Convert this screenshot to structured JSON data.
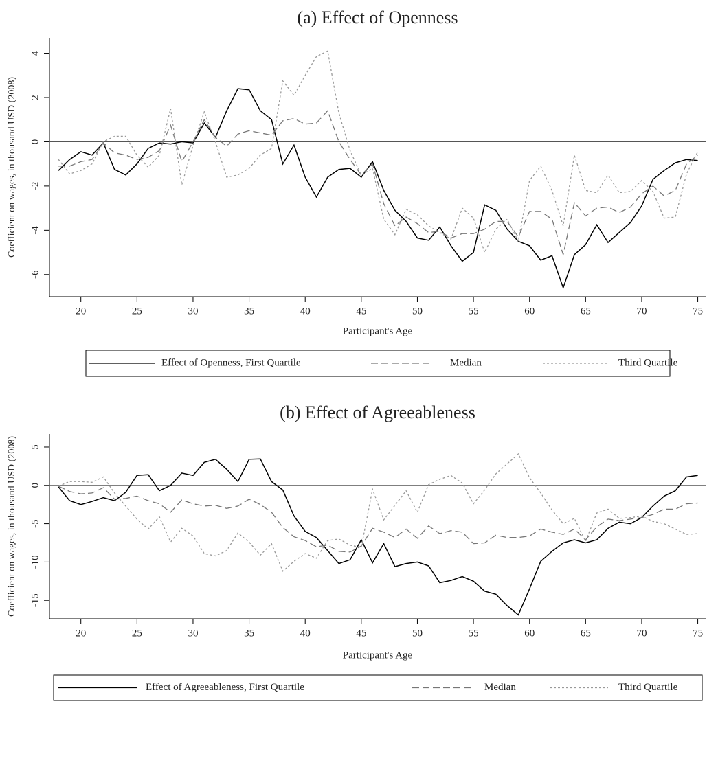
{
  "chart_data": [
    {
      "type": "line",
      "title": "(a) Effect of Openness",
      "xlabel": "Participant's Age",
      "ylabel": "Coefficient on wages, in thousand USD (2008)",
      "x": [
        18,
        19,
        20,
        21,
        22,
        23,
        24,
        25,
        26,
        27,
        28,
        29,
        30,
        31,
        32,
        33,
        34,
        35,
        36,
        37,
        38,
        39,
        40,
        41,
        42,
        43,
        44,
        45,
        46,
        47,
        48,
        49,
        50,
        51,
        52,
        53,
        54,
        55,
        56,
        57,
        58,
        59,
        60,
        61,
        62,
        63,
        64,
        65,
        66,
        67,
        68,
        69,
        70,
        71,
        72,
        73,
        74,
        75
      ],
      "series": [
        {
          "name": "Effect of Openness, First Quartile",
          "color": "#000000",
          "linestyle": "solid",
          "values": [
            -1.3,
            -0.8,
            -0.45,
            -0.6,
            -0.05,
            -1.25,
            -1.5,
            -1.0,
            -0.3,
            -0.05,
            -0.1,
            0.0,
            -0.05,
            0.85,
            0.2,
            1.4,
            2.4,
            2.35,
            1.4,
            1.0,
            -1.0,
            -0.15,
            -1.6,
            -2.5,
            -1.6,
            -1.25,
            -1.2,
            -1.6,
            -0.9,
            -2.2,
            -3.1,
            -3.6,
            -4.35,
            -4.45,
            -3.85,
            -4.7,
            -5.4,
            -5.0,
            -2.85,
            -3.1,
            -3.95,
            -4.5,
            -4.7,
            -5.35,
            -5.15,
            -6.6,
            -5.1,
            -4.65,
            -3.75,
            -4.55,
            -4.1,
            -3.65,
            -2.9,
            -1.7,
            -1.3,
            -0.95,
            -0.8,
            -0.85
          ]
        },
        {
          "name": "Median",
          "color": "#777777",
          "linestyle": "dashed",
          "values": [
            -1.1,
            -1.1,
            -0.9,
            -0.8,
            -0.05,
            -0.5,
            -0.6,
            -0.8,
            -0.7,
            -0.4,
            0.75,
            -0.9,
            0.0,
            1.0,
            0.2,
            -0.2,
            0.35,
            0.5,
            0.4,
            0.3,
            0.95,
            1.05,
            0.8,
            0.85,
            1.4,
            0.0,
            -0.8,
            -1.5,
            -1.0,
            -2.8,
            -3.8,
            -3.4,
            -3.7,
            -4.1,
            -4.05,
            -4.35,
            -4.15,
            -4.15,
            -3.95,
            -3.6,
            -3.6,
            -4.3,
            -3.15,
            -3.15,
            -3.5,
            -5.1,
            -2.75,
            -3.35,
            -3.0,
            -2.95,
            -3.2,
            -2.95,
            -2.35,
            -2.0,
            -2.45,
            -2.2,
            -1.0,
            -0.6
          ]
        },
        {
          "name": "Third Quartile",
          "color": "#999999",
          "linestyle": "dotted",
          "values": [
            -0.8,
            -1.45,
            -1.3,
            -1.0,
            0.0,
            0.25,
            0.25,
            -0.6,
            -1.15,
            -0.6,
            1.5,
            -1.95,
            -0.15,
            1.35,
            0.0,
            -1.6,
            -1.5,
            -1.2,
            -0.6,
            -0.3,
            2.75,
            2.1,
            3.0,
            3.85,
            4.1,
            1.3,
            -0.4,
            -1.5,
            -1.2,
            -3.5,
            -4.2,
            -3.05,
            -3.3,
            -3.8,
            -4.1,
            -4.4,
            -3.0,
            -3.45,
            -5.0,
            -3.95,
            -3.5,
            -4.5,
            -1.75,
            -1.1,
            -2.2,
            -3.8,
            -0.6,
            -2.2,
            -2.3,
            -1.5,
            -2.3,
            -2.25,
            -1.75,
            -2.25,
            -3.45,
            -3.4,
            -1.45,
            -0.45
          ]
        }
      ],
      "xlim": [
        17.2,
        75.7
      ],
      "ylim": [
        -7.0,
        4.7
      ],
      "xticks": [
        20,
        25,
        30,
        35,
        40,
        45,
        50,
        55,
        60,
        65,
        70,
        75
      ],
      "yticks": [
        -6,
        -4,
        -2,
        0,
        2,
        4
      ],
      "hline": 0
    },
    {
      "type": "line",
      "title": "(b) Effect of Agreeableness",
      "xlabel": "Participant's Age",
      "ylabel": "Coefficient on wages, in thousand USD (2008)",
      "x": [
        18,
        19,
        20,
        21,
        22,
        23,
        24,
        25,
        26,
        27,
        28,
        29,
        30,
        31,
        32,
        33,
        34,
        35,
        36,
        37,
        38,
        39,
        40,
        41,
        42,
        43,
        44,
        45,
        46,
        47,
        48,
        49,
        50,
        51,
        52,
        53,
        54,
        55,
        56,
        57,
        58,
        59,
        60,
        61,
        62,
        63,
        64,
        65,
        66,
        67,
        68,
        69,
        70,
        71,
        72,
        73,
        74,
        75
      ],
      "series": [
        {
          "name": "Effect of Agreeableness, First Quartile",
          "color": "#000000",
          "linestyle": "solid",
          "values": [
            -0.2,
            -2.0,
            -2.5,
            -2.1,
            -1.6,
            -2.0,
            -0.9,
            1.3,
            1.4,
            -0.7,
            0.0,
            1.6,
            1.3,
            3.0,
            3.4,
            2.1,
            0.5,
            3.4,
            3.45,
            0.5,
            -0.6,
            -4.0,
            -6.0,
            -6.8,
            -8.5,
            -10.2,
            -9.7,
            -7.1,
            -10.1,
            -7.6,
            -10.6,
            -10.2,
            -10.0,
            -10.5,
            -12.7,
            -12.4,
            -11.9,
            -12.5,
            -13.8,
            -14.2,
            -15.7,
            -16.9,
            -13.5,
            -9.9,
            -8.6,
            -7.5,
            -7.1,
            -7.5,
            -7.1,
            -5.6,
            -4.8,
            -5.0,
            -4.2,
            -2.7,
            -1.4,
            -0.7,
            1.1,
            1.3
          ]
        },
        {
          "name": "Median",
          "color": "#777777",
          "linestyle": "dashed",
          "values": [
            -0.1,
            -0.8,
            -1.1,
            -1.0,
            -0.3,
            -1.8,
            -1.7,
            -1.4,
            -2.0,
            -2.4,
            -3.5,
            -1.9,
            -2.4,
            -2.7,
            -2.6,
            -3.0,
            -2.7,
            -1.8,
            -2.5,
            -3.5,
            -5.5,
            -6.7,
            -7.2,
            -8.0,
            -7.8,
            -8.6,
            -8.7,
            -7.9,
            -5.6,
            -6.1,
            -6.8,
            -5.7,
            -6.9,
            -5.3,
            -6.3,
            -5.9,
            -6.1,
            -7.6,
            -7.5,
            -6.5,
            -6.8,
            -6.8,
            -6.6,
            -5.7,
            -6.1,
            -6.4,
            -5.7,
            -7.1,
            -5.4,
            -4.4,
            -4.6,
            -4.4,
            -4.2,
            -3.8,
            -3.1,
            -3.1,
            -2.4,
            -2.3
          ]
        },
        {
          "name": "Third Quartile",
          "color": "#999999",
          "linestyle": "dotted",
          "values": [
            -0.1,
            0.5,
            0.5,
            0.4,
            1.1,
            -1.0,
            -2.7,
            -4.4,
            -5.7,
            -4.1,
            -7.4,
            -5.6,
            -6.6,
            -8.9,
            -9.2,
            -8.5,
            -6.2,
            -7.4,
            -9.1,
            -7.6,
            -11.2,
            -9.9,
            -8.9,
            -9.5,
            -7.2,
            -7.0,
            -7.8,
            -8.1,
            -0.5,
            -4.5,
            -2.6,
            -0.7,
            -3.5,
            0.1,
            0.8,
            1.3,
            0.3,
            -2.4,
            -0.6,
            1.5,
            2.8,
            4.1,
            1.0,
            -1.0,
            -3.2,
            -5.0,
            -4.3,
            -7.3,
            -3.6,
            -3.1,
            -4.3,
            -4.2,
            -4.0,
            -4.7,
            -5.0,
            -5.7,
            -6.4,
            -6.3
          ]
        }
      ],
      "xlim": [
        17.2,
        75.7
      ],
      "ylim": [
        -17.4,
        6.7
      ],
      "xticks": [
        20,
        25,
        30,
        35,
        40,
        45,
        50,
        55,
        60,
        65,
        70,
        75
      ],
      "yticks": [
        -15,
        -10,
        -5,
        0,
        5
      ],
      "hline": 0
    }
  ]
}
